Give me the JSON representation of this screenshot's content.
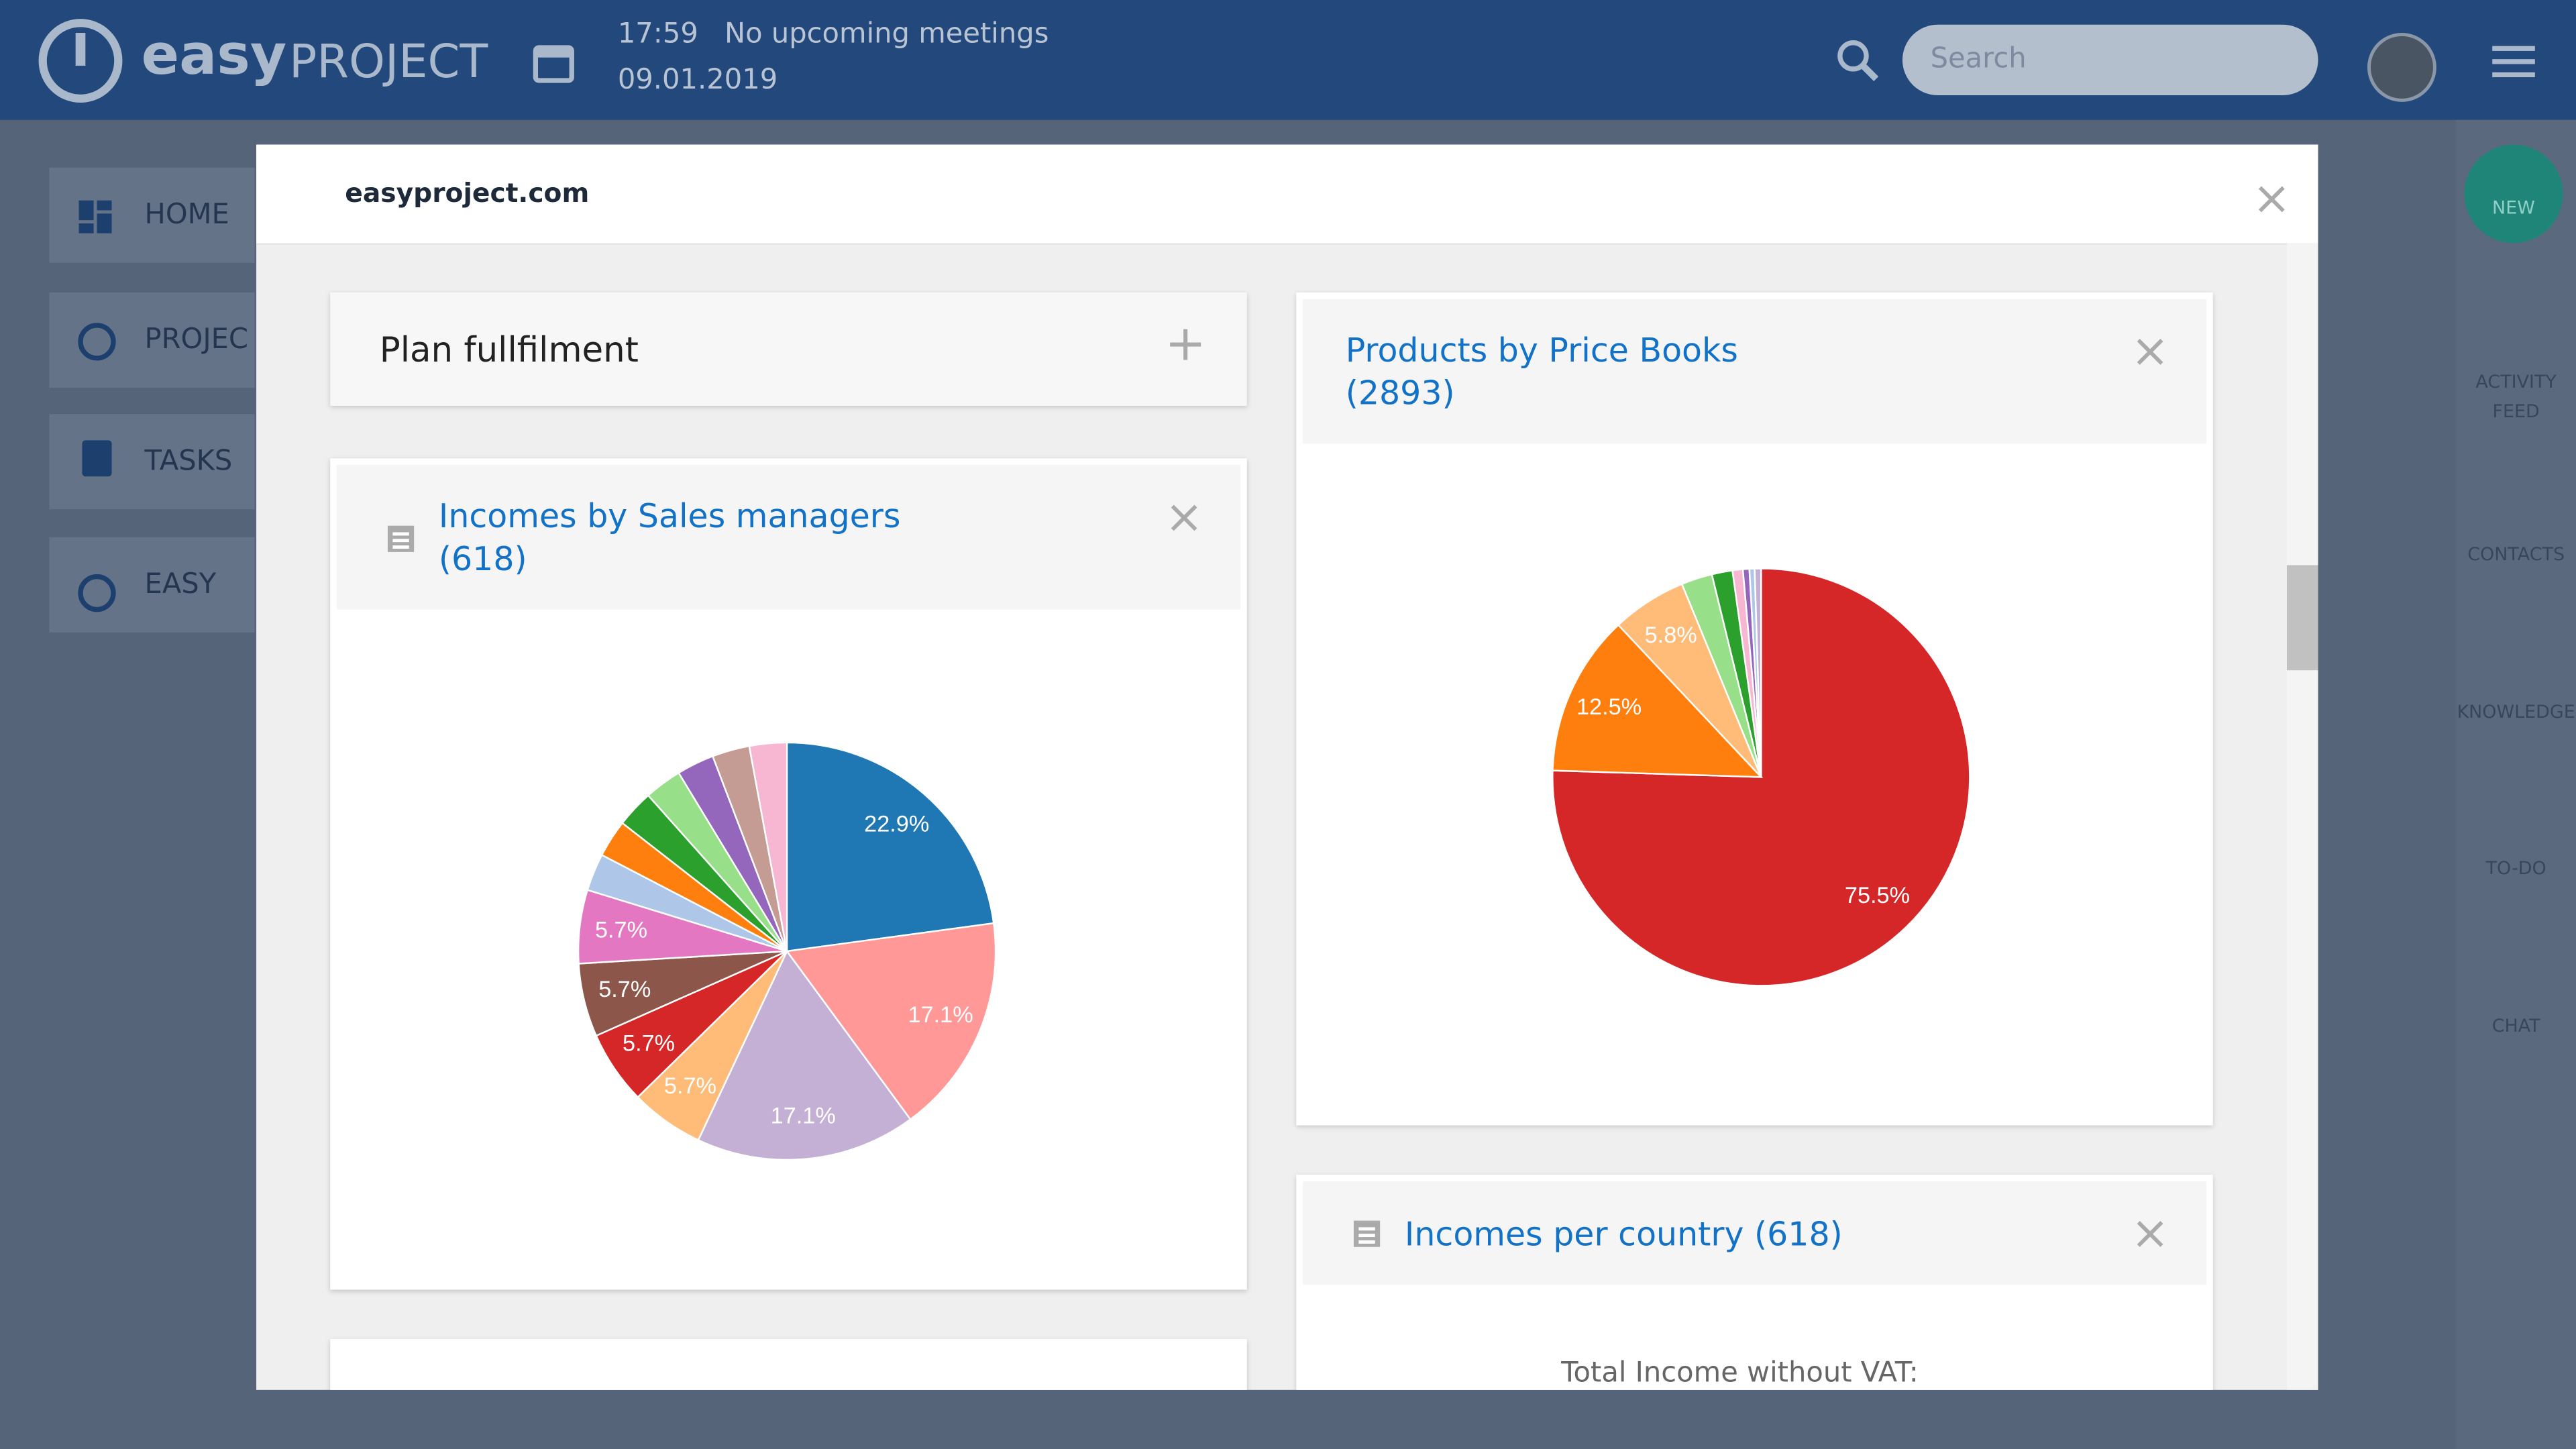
{
  "header": {
    "logo_bold": "easy",
    "logo_light": "PROJECT",
    "time": "17:59",
    "meetings": "No upcoming meetings",
    "date": "09.01.2019",
    "search_placeholder": "Search"
  },
  "sidebar": [
    "HOME",
    "PROJEC",
    "TASKS",
    "EASY"
  ],
  "right_bar": {
    "new": "NEW",
    "items": [
      "ACTIVITY FEED",
      "CONTACTS",
      "KNOWLEDGE",
      "TO-DO",
      "CHAT"
    ]
  },
  "modal": {
    "title": "easyproject.com",
    "widgets": [
      {
        "title": "Plan fullfilment"
      },
      {
        "title": "Incomes per country (618)",
        "text": "Total Income without VAT:"
      }
    ]
  },
  "chart_data": [
    {
      "type": "pie",
      "title": "Incomes by Sales managers (618)",
      "values": [
        22.9,
        17.1,
        17.1,
        5.7,
        5.7,
        5.7,
        5.7,
        2.9,
        2.9,
        2.9,
        2.9,
        2.9,
        2.9,
        2.9
      ],
      "value_labels": [
        "22.9%",
        "17.1%",
        "17.1%",
        "5.7%",
        "5.7%",
        "5.7%",
        "5.7%",
        null,
        null,
        null,
        null,
        null,
        null,
        null
      ],
      "colors": [
        "#1f77b4",
        "#ff9896",
        "#c5b0d5",
        "#ffbb78",
        "#d62728",
        "#8c564b",
        "#e377c2",
        "#aec7e8",
        "#ff7f0e",
        "#2ca02c",
        "#98df8a",
        "#9467bd",
        "#c49c94",
        "#f7b6d2"
      ]
    },
    {
      "type": "pie",
      "title": "Products by Price Books (2893)",
      "values": [
        75.5,
        12.5,
        5.8,
        2.4,
        1.6,
        0.8,
        0.5,
        0.4,
        0.5
      ],
      "value_labels": [
        "75.5%",
        "12.5%",
        "5.8%",
        null,
        null,
        null,
        null,
        null,
        null
      ],
      "colors": [
        "#d62728",
        "#ff7f0e",
        "#ffbb78",
        "#98df8a",
        "#2ca02c",
        "#f7b6d2",
        "#9467bd",
        "#aec7e8",
        "#c5b0d5"
      ]
    }
  ]
}
